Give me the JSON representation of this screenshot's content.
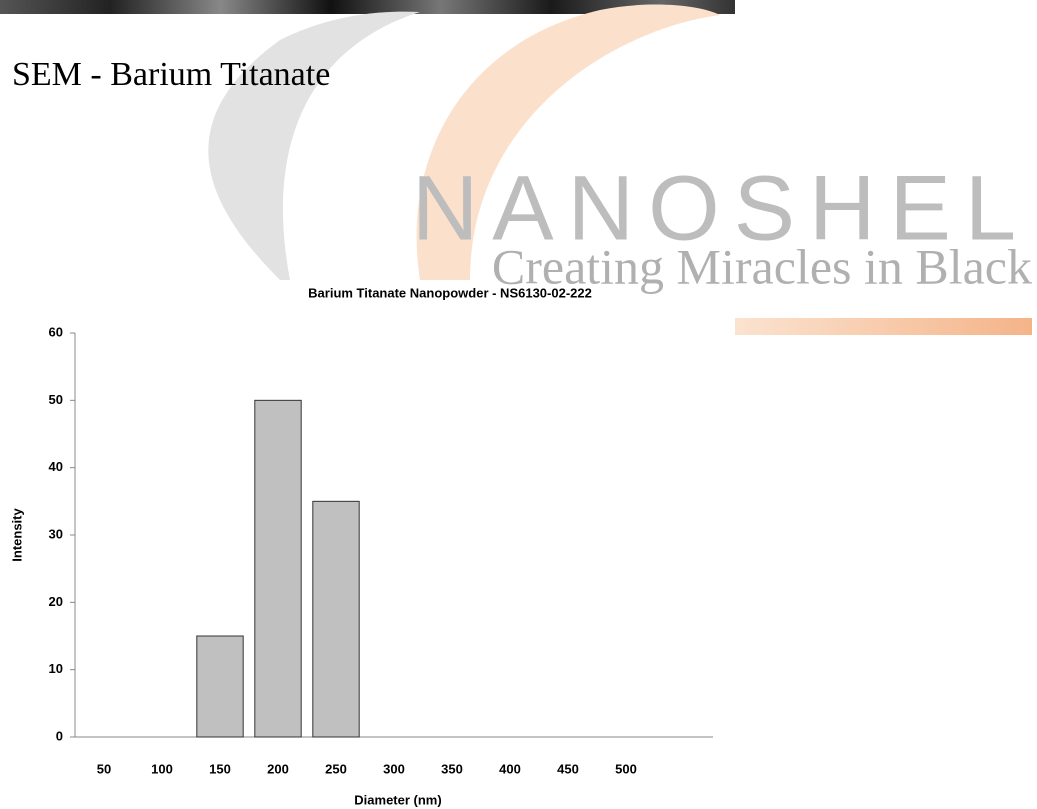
{
  "page": {
    "heading": "SEM - Barium Titanate",
    "watermark": {
      "brand": "NANOSHEL",
      "tagline": "Creating Miracles in Black"
    }
  },
  "chart_data": {
    "type": "bar",
    "title": "Barium Titanate Nanopowder - NS6130-02-222",
    "x_label": "Diameter (nm)",
    "y_label": "Intensity",
    "categories": [
      "50",
      "100",
      "150",
      "200",
      "250",
      "300",
      "350",
      "400",
      "450",
      "500",
      null
    ],
    "values": [
      0,
      0,
      15,
      50,
      35,
      0,
      0,
      0,
      0,
      0,
      0
    ],
    "color": "#c0c0c0",
    "ylim": [
      0,
      60
    ],
    "yticks": [
      0,
      10,
      20,
      30,
      40,
      50,
      60
    ],
    "grid": false
  }
}
